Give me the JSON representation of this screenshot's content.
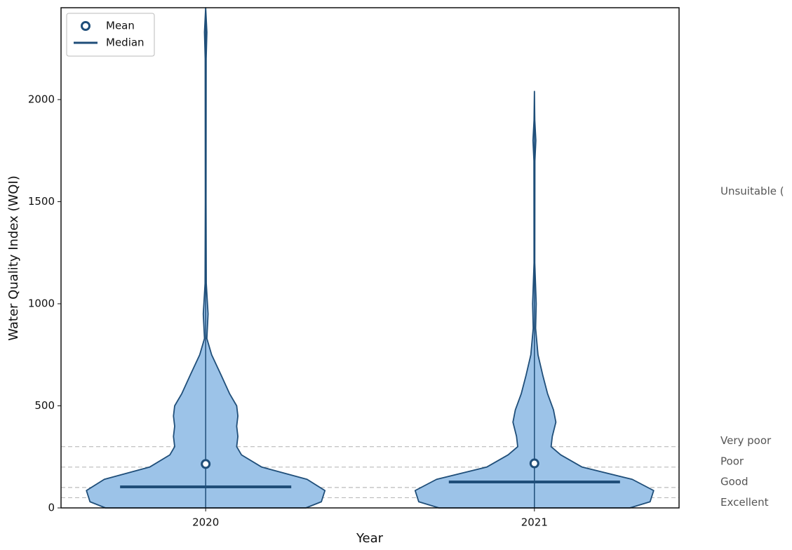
{
  "chart_data": {
    "type": "violin",
    "x_label": "Year",
    "y_label": "Water Quality Index (WQI)",
    "categories": [
      "2020",
      "2021"
    ],
    "means": [
      215,
      218
    ],
    "medians": [
      103,
      127
    ],
    "mins": [
      0,
      0
    ],
    "maxs": [
      2450,
      2040
    ],
    "profiles": [
      {
        "y": [
          0,
          30,
          85,
          140,
          200,
          260,
          300,
          350,
          400,
          450,
          500,
          560,
          650,
          750,
          830,
          950,
          1100,
          1500,
          2200,
          2330,
          2450
        ],
        "width": [
          0.84,
          0.97,
          1.0,
          0.85,
          0.47,
          0.3,
          0.26,
          0.27,
          0.26,
          0.27,
          0.26,
          0.2,
          0.13,
          0.05,
          0.01,
          0.02,
          0.005,
          0.003,
          0.004,
          0.01,
          0
        ]
      },
      {
        "y": [
          0,
          30,
          85,
          140,
          200,
          260,
          300,
          350,
          420,
          480,
          560,
          650,
          750,
          880,
          1000,
          1200,
          1700,
          1800,
          1900,
          2040
        ],
        "width": [
          0.8,
          0.97,
          1.0,
          0.82,
          0.4,
          0.22,
          0.14,
          0.15,
          0.18,
          0.16,
          0.11,
          0.07,
          0.03,
          0.01,
          0.015,
          0.003,
          0.004,
          0.012,
          0.003,
          0
        ]
      }
    ],
    "fill": "#9cc3e8",
    "stroke": "#1f4e79",
    "legend": [
      "Mean",
      "Median"
    ],
    "legend_corner": "upper left",
    "thresholds": [
      {
        "value": 50,
        "label": "Excellent"
      },
      {
        "value": 100,
        "label": "Good"
      },
      {
        "value": 200,
        "label": "Poor"
      },
      {
        "value": 300,
        "label": "Very poor"
      }
    ],
    "annotation": {
      "value": 1550,
      "label": "Unsuitable ("
    },
    "xlim": [
      -0.44,
      1.44
    ],
    "ylim": [
      0,
      2450
    ],
    "yticks": [
      0,
      500,
      1000,
      1500,
      2000
    ]
  }
}
